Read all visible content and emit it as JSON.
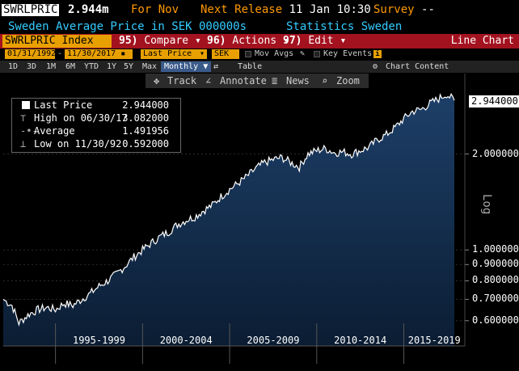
{
  "header": {
    "ticker": "SWRLPRIC",
    "value": "2.944m",
    "for_label": "For Nov",
    "release_label": "Next Release",
    "release_value": "11 Jan 10:30",
    "survey_label": "Survey",
    "survey_value": "--"
  },
  "subheader": {
    "description": "Sweden Average Price in SEK 000000s",
    "source": "Statistics Sweden"
  },
  "menu": {
    "index_label": "SWRLPRIC Index",
    "compare_num": "95)",
    "compare_label": "Compare",
    "actions_num": "96)",
    "actions_label": "Actions",
    "edit_num": "97)",
    "edit_label": "Edit",
    "chart_type": "Line Chart"
  },
  "controls": {
    "start_date": "01/31/1992",
    "end_date": "11/30/2017",
    "field": "Last Price",
    "currency": "SEK",
    "mov_avgs": "Mov Avgs",
    "key_events": "Key Events",
    "info_icon": "i"
  },
  "ranges": {
    "items": [
      "1D",
      "3D",
      "1M",
      "6M",
      "YTD",
      "1Y",
      "5Y",
      "Max"
    ],
    "periodicity": "Monthly",
    "table": "Table",
    "chart_content": "Chart Content"
  },
  "tools": {
    "track": "Track",
    "annotate": "Annotate",
    "news": "News",
    "zoom": "Zoom"
  },
  "legend": {
    "last_label": "Last Price",
    "last_value": "2.944000",
    "high_label": "High on 06/30/17",
    "high_value": "3.082000",
    "avg_label": "Average",
    "avg_value": "1.491956",
    "low_label": "Low on 11/30/92",
    "low_value": "0.592000"
  },
  "price_tag": "2.944000",
  "scale_label": "Log",
  "colors": {
    "orange": "#ff9900",
    "cyan": "#33ccff",
    "menu_red": "#a3121f",
    "fill_top": "#1d3f68",
    "fill_bottom": "#0b1d33"
  },
  "chart_data": {
    "type": "area",
    "scale": "log",
    "ylim": [
      0.5,
      3.2
    ],
    "y_ticks": [
      "2.000000",
      "1.000000",
      "0.900000",
      "0.800000",
      "0.700000",
      "0.600000"
    ],
    "y_tick_values": [
      2.0,
      1.0,
      0.9,
      0.8,
      0.7,
      0.6
    ],
    "x_labels": [
      "1995-1999",
      "2000-2004",
      "2005-2009",
      "2010-2014",
      "2015-2019"
    ],
    "x_start": 1992.0,
    "x_end": 2017.9,
    "x_label_ranges": [
      [
        1995,
        2000
      ],
      [
        2000,
        2005
      ],
      [
        2005,
        2010
      ],
      [
        2010,
        2015
      ],
      [
        2015,
        2020
      ]
    ],
    "x_dividers": [
      1995,
      2000,
      2005,
      2010,
      2015
    ],
    "series": [
      {
        "name": "Last Price",
        "x": [
          1992.0,
          1992.5,
          1992.9,
          1993.5,
          1994.0,
          1994.5,
          1995.0,
          1995.5,
          1996.0,
          1996.5,
          1997.0,
          1997.5,
          1998.0,
          1998.5,
          1999.0,
          1999.5,
          2000.0,
          2000.5,
          2001.0,
          2001.5,
          2002.0,
          2002.5,
          2003.0,
          2003.5,
          2004.0,
          2004.5,
          2005.0,
          2005.5,
          2006.0,
          2006.5,
          2007.0,
          2007.5,
          2008.0,
          2008.5,
          2009.0,
          2009.5,
          2010.0,
          2010.5,
          2011.0,
          2011.5,
          2012.0,
          2012.5,
          2013.0,
          2013.5,
          2014.0,
          2014.5,
          2015.0,
          2015.5,
          2016.0,
          2016.5,
          2017.0,
          2017.45,
          2017.9
        ],
        "values": [
          0.7,
          0.67,
          0.59,
          0.63,
          0.65,
          0.66,
          0.65,
          0.68,
          0.67,
          0.7,
          0.73,
          0.77,
          0.8,
          0.84,
          0.89,
          0.95,
          1.0,
          1.05,
          1.1,
          1.14,
          1.2,
          1.24,
          1.27,
          1.33,
          1.38,
          1.47,
          1.55,
          1.62,
          1.7,
          1.8,
          1.88,
          1.92,
          1.95,
          1.88,
          1.82,
          2.0,
          2.05,
          2.08,
          2.02,
          2.03,
          2.0,
          2.05,
          2.1,
          2.22,
          2.3,
          2.42,
          2.58,
          2.72,
          2.76,
          2.88,
          2.98,
          3.082,
          2.944
        ]
      }
    ]
  }
}
